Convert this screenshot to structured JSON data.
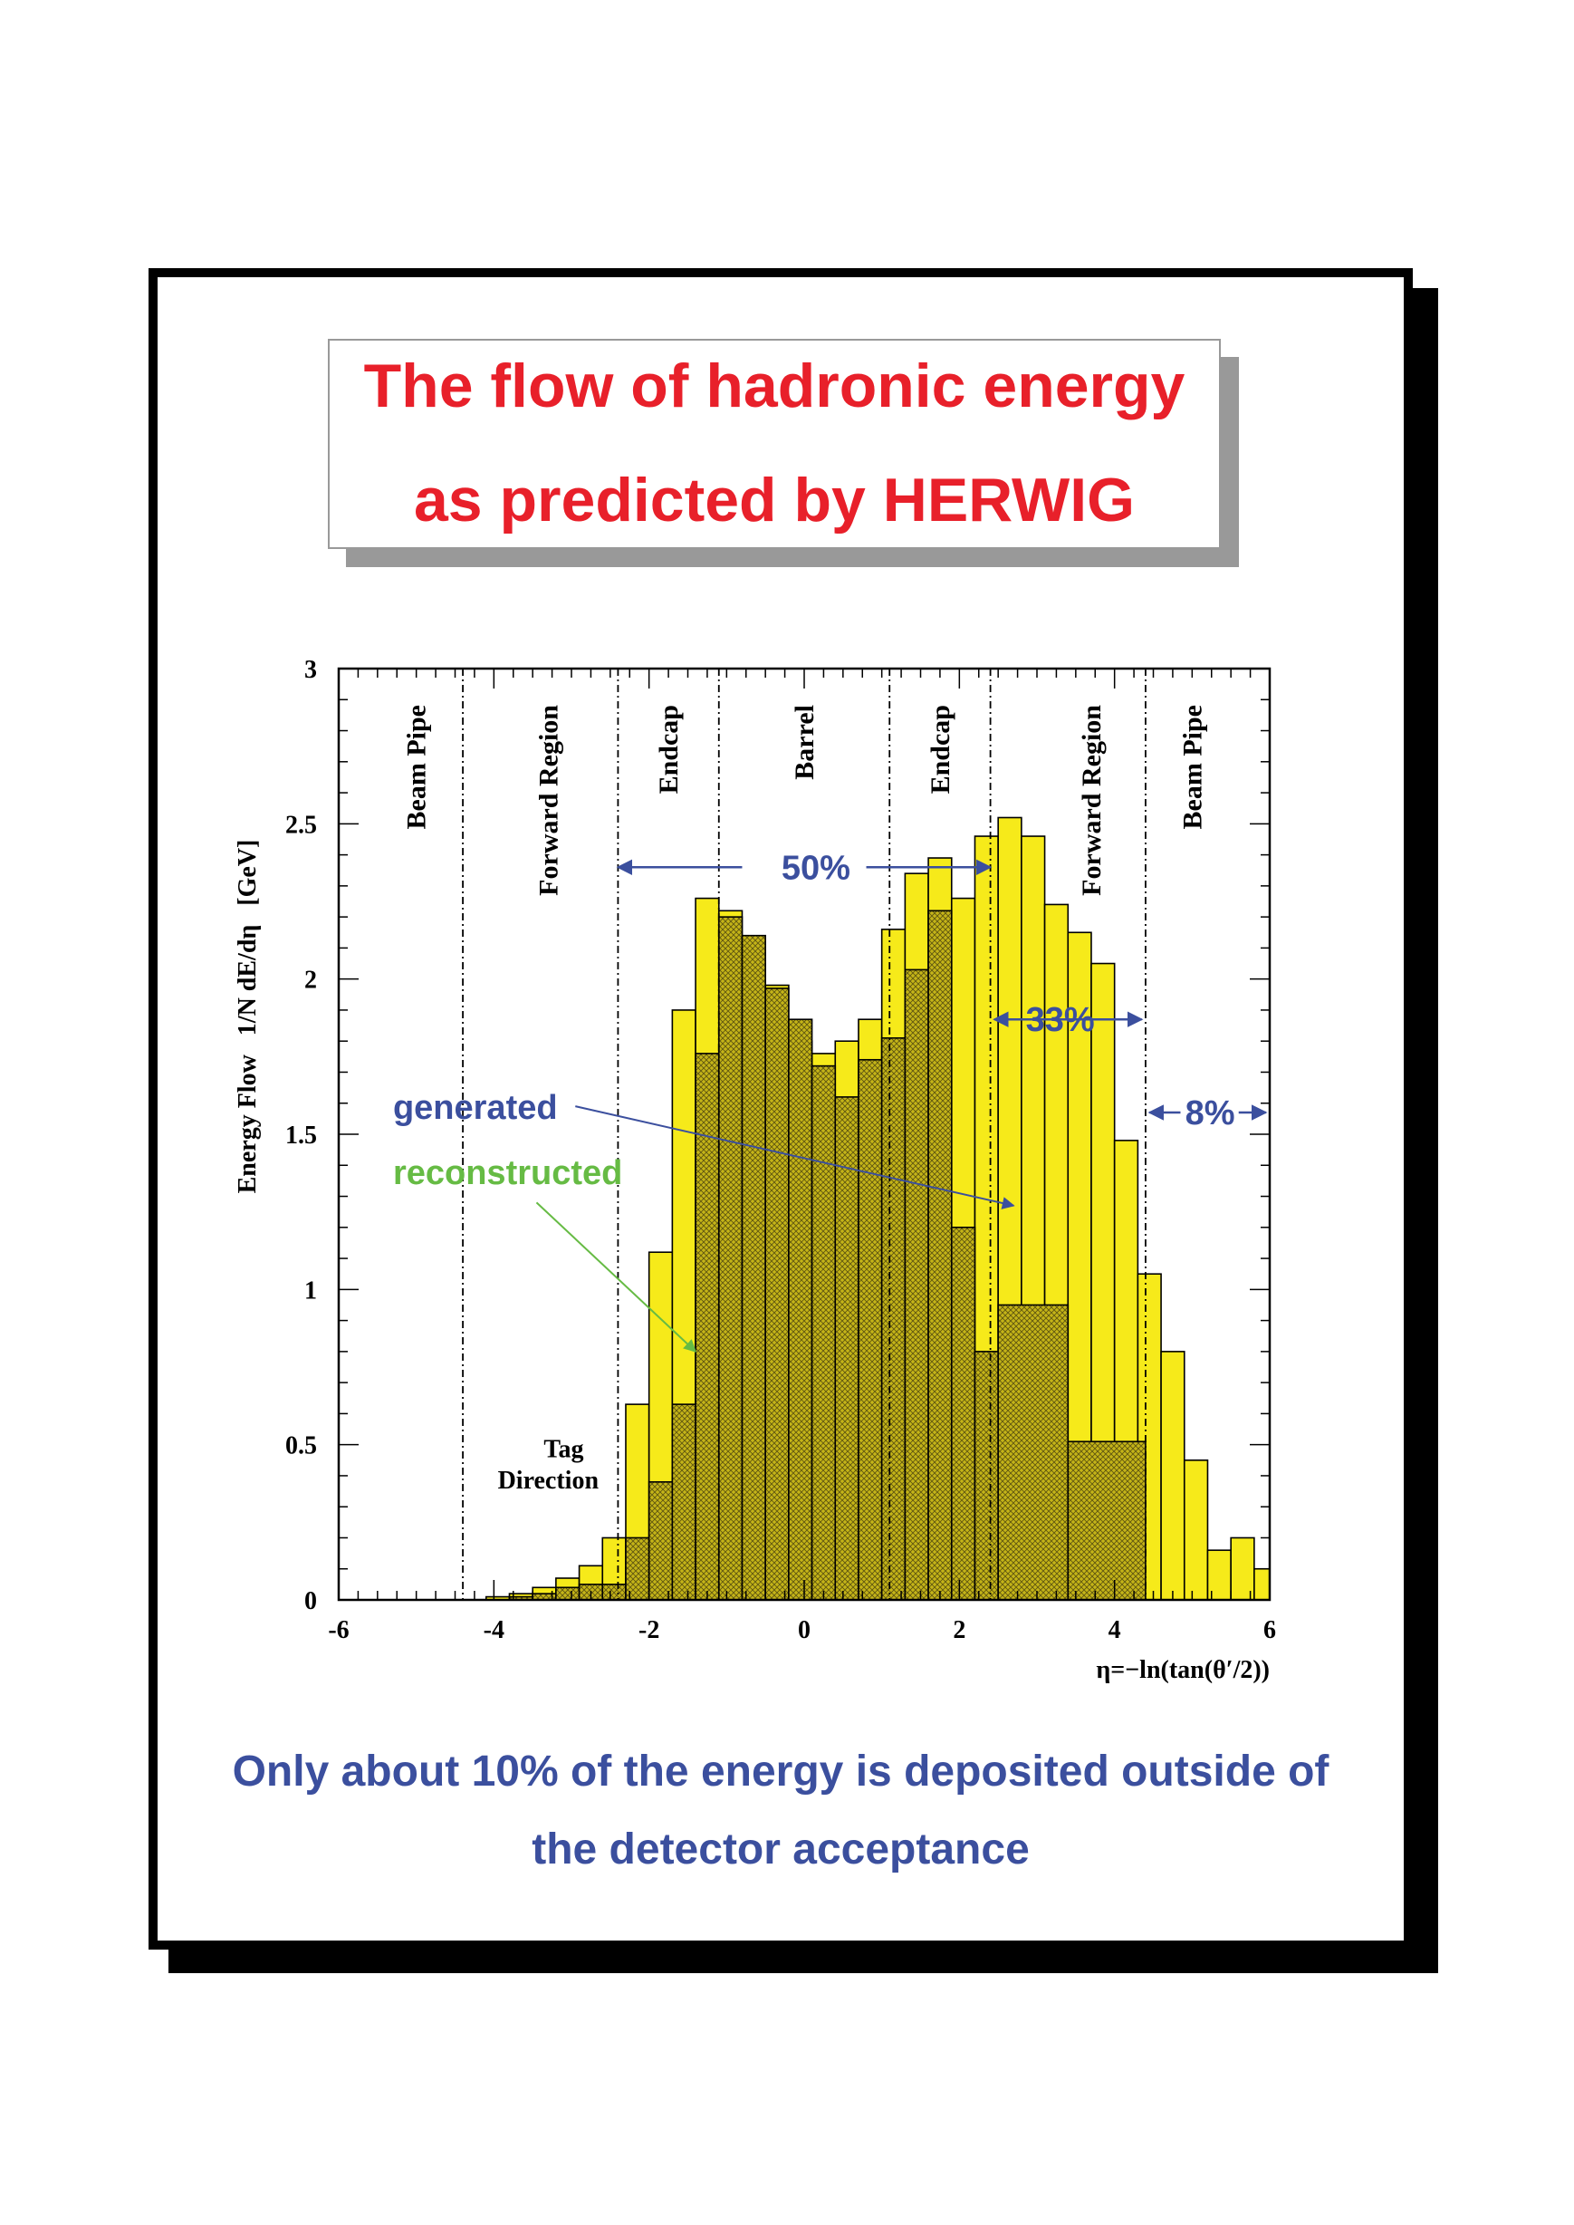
{
  "title": {
    "line1": "The flow of hadronic energy",
    "line2": "as predicted by HERWIG"
  },
  "caption": {
    "line1": "Only about 10% of the energy is deposited outside of",
    "line2": "the detector acceptance"
  },
  "chart_data": {
    "type": "bar",
    "histogram": true,
    "xlabel": "η=−ln(tan(θ′/2))",
    "ylabel": "Energy Flow   1/N dE/dη   [GeV]",
    "xlim": [
      -6,
      6
    ],
    "ylim": [
      0,
      3
    ],
    "x_ticks": [
      -6,
      -4,
      -2,
      0,
      2,
      4,
      6
    ],
    "x_tick_labels": [
      "-6",
      "-4",
      "-2",
      "0",
      "2",
      "4",
      "6"
    ],
    "y_ticks": [
      0,
      0.5,
      1,
      1.5,
      2,
      2.5,
      3
    ],
    "y_tick_labels": [
      "0",
      "0.5",
      "1",
      "1.5",
      "2",
      "2.5",
      "3"
    ],
    "grid": false,
    "colors": {
      "generated_fill": "#f6ea1a",
      "reconstructed_fill": "#c4b418",
      "annotation_blue": "#3b4f9e",
      "annotation_green": "#66bb44",
      "title_red": "#e8202a"
    },
    "series": [
      {
        "name": "generated",
        "style": "solid yellow fill",
        "bins": [
          {
            "x0": -4.1,
            "x1": -3.8,
            "y": 0.01
          },
          {
            "x0": -3.8,
            "x1": -3.5,
            "y": 0.02
          },
          {
            "x0": -3.5,
            "x1": -3.2,
            "y": 0.04
          },
          {
            "x0": -3.2,
            "x1": -2.9,
            "y": 0.07
          },
          {
            "x0": -2.9,
            "x1": -2.6,
            "y": 0.11
          },
          {
            "x0": -2.6,
            "x1": -2.3,
            "y": 0.2
          },
          {
            "x0": -2.3,
            "x1": -2.0,
            "y": 0.63
          },
          {
            "x0": -2.0,
            "x1": -1.7,
            "y": 1.12
          },
          {
            "x0": -1.7,
            "x1": -1.4,
            "y": 1.9
          },
          {
            "x0": -1.4,
            "x1": -1.1,
            "y": 2.26
          },
          {
            "x0": -1.1,
            "x1": -0.8,
            "y": 2.22
          },
          {
            "x0": -0.8,
            "x1": -0.5,
            "y": 2.05
          },
          {
            "x0": -0.5,
            "x1": -0.2,
            "y": 1.98
          },
          {
            "x0": -0.2,
            "x1": 0.1,
            "y": 1.8
          },
          {
            "x0": 0.1,
            "x1": 0.4,
            "y": 1.76
          },
          {
            "x0": 0.4,
            "x1": 0.7,
            "y": 1.8
          },
          {
            "x0": 0.7,
            "x1": 1.0,
            "y": 1.87
          },
          {
            "x0": 1.0,
            "x1": 1.3,
            "y": 2.16
          },
          {
            "x0": 1.3,
            "x1": 1.6,
            "y": 2.34
          },
          {
            "x0": 1.6,
            "x1": 1.9,
            "y": 2.39
          },
          {
            "x0": 1.9,
            "x1": 2.2,
            "y": 2.26
          },
          {
            "x0": 2.2,
            "x1": 2.5,
            "y": 2.46
          },
          {
            "x0": 2.5,
            "x1": 2.8,
            "y": 2.52
          },
          {
            "x0": 2.8,
            "x1": 3.1,
            "y": 2.46
          },
          {
            "x0": 3.1,
            "x1": 3.4,
            "y": 2.24
          },
          {
            "x0": 3.4,
            "x1": 3.7,
            "y": 2.15
          },
          {
            "x0": 3.7,
            "x1": 4.0,
            "y": 2.05
          },
          {
            "x0": 4.0,
            "x1": 4.3,
            "y": 1.48
          },
          {
            "x0": 4.3,
            "x1": 4.6,
            "y": 1.05
          },
          {
            "x0": 4.6,
            "x1": 4.9,
            "y": 0.8
          },
          {
            "x0": 4.9,
            "x1": 5.2,
            "y": 0.45
          },
          {
            "x0": 5.2,
            "x1": 5.5,
            "y": 0.16
          },
          {
            "x0": 5.5,
            "x1": 5.8,
            "y": 0.2
          },
          {
            "x0": 5.8,
            "x1": 6.0,
            "y": 0.1
          }
        ]
      },
      {
        "name": "reconstructed",
        "style": "cross-hatched dark fill",
        "bins": [
          {
            "x0": -3.8,
            "x1": -3.5,
            "y": 0.01
          },
          {
            "x0": -3.5,
            "x1": -3.2,
            "y": 0.02
          },
          {
            "x0": -3.2,
            "x1": -2.9,
            "y": 0.04
          },
          {
            "x0": -2.9,
            "x1": -2.6,
            "y": 0.05
          },
          {
            "x0": -2.6,
            "x1": -2.3,
            "y": 0.05
          },
          {
            "x0": -2.3,
            "x1": -2.0,
            "y": 0.2
          },
          {
            "x0": -2.0,
            "x1": -1.7,
            "y": 0.38
          },
          {
            "x0": -1.7,
            "x1": -1.4,
            "y": 0.63
          },
          {
            "x0": -1.4,
            "x1": -1.1,
            "y": 1.76
          },
          {
            "x0": -1.1,
            "x1": -0.8,
            "y": 2.2
          },
          {
            "x0": -0.8,
            "x1": -0.5,
            "y": 2.14
          },
          {
            "x0": -0.5,
            "x1": -0.2,
            "y": 1.97
          },
          {
            "x0": -0.2,
            "x1": 0.1,
            "y": 1.87
          },
          {
            "x0": 0.1,
            "x1": 0.4,
            "y": 1.72
          },
          {
            "x0": 0.4,
            "x1": 0.7,
            "y": 1.62
          },
          {
            "x0": 0.7,
            "x1": 1.0,
            "y": 1.74
          },
          {
            "x0": 1.0,
            "x1": 1.3,
            "y": 1.81
          },
          {
            "x0": 1.3,
            "x1": 1.6,
            "y": 2.03
          },
          {
            "x0": 1.6,
            "x1": 1.9,
            "y": 2.22
          },
          {
            "x0": 1.9,
            "x1": 2.2,
            "y": 1.2
          },
          {
            "x0": 2.2,
            "x1": 2.5,
            "y": 0.8
          },
          {
            "x0": 2.5,
            "x1": 3.4,
            "y": 0.95
          },
          {
            "x0": 3.4,
            "x1": 4.4,
            "y": 0.51
          }
        ]
      }
    ],
    "region_boundaries": [
      -4.4,
      -2.4,
      -1.1,
      1.1,
      2.4,
      4.4
    ],
    "region_labels": [
      {
        "text": "Beam Pipe",
        "x": -5.0
      },
      {
        "text": "Forward Region",
        "x": -3.3
      },
      {
        "text": "Endcap",
        "x": -1.75
      },
      {
        "text": "Barrel",
        "x": 0.0
      },
      {
        "text": "Endcap",
        "x": 1.75
      },
      {
        "text": "Forward Region",
        "x": 3.7
      },
      {
        "text": "Beam Pipe",
        "x": 5.0
      }
    ],
    "annotations": {
      "tag_direction_line1": "Tag",
      "tag_direction_line2": "Direction",
      "pct_50": "50%",
      "pct_33": "33%",
      "pct_8": "8%",
      "legend_generated": "generated",
      "legend_reconstructed": "reconstructed"
    }
  }
}
